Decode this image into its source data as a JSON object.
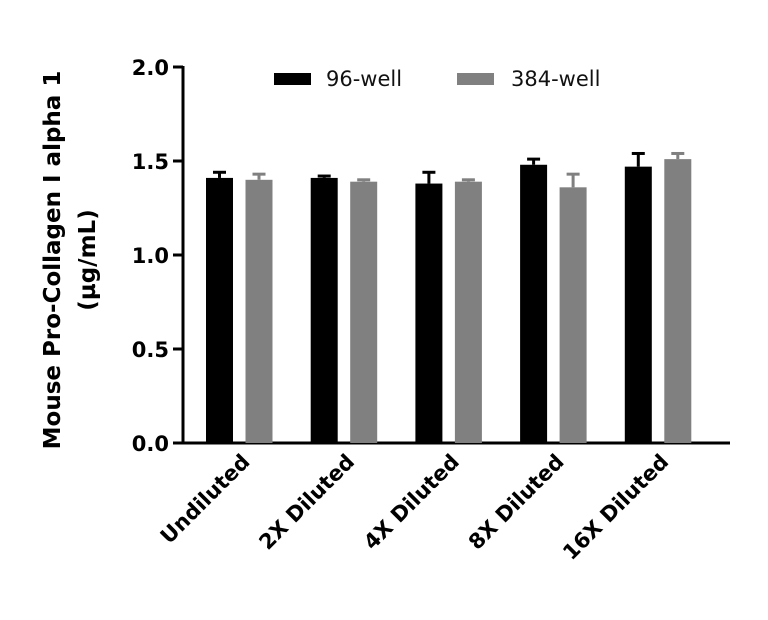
{
  "chart_data": {
    "type": "bar",
    "title": "",
    "xlabel": "",
    "ylabel_line1": "Mouse Pro-Collagen I alpha 1",
    "ylabel_line2": "(µg/mL)",
    "ylim": [
      0,
      2.0
    ],
    "yticks": [
      "0.0",
      "0.5",
      "1.0",
      "1.5",
      "2.0"
    ],
    "grid": false,
    "legend_position": "top",
    "categories": [
      "Undiluted",
      "2X Diluted",
      "4X Diluted",
      "8X Diluted",
      "16X Diluted"
    ],
    "series": [
      {
        "name": "96-well",
        "color": "#000000",
        "values": [
          1.41,
          1.41,
          1.38,
          1.48,
          1.47
        ],
        "error_upper": [
          1.44,
          1.42,
          1.44,
          1.51,
          1.54
        ]
      },
      {
        "name": "384-well",
        "color": "#808080",
        "values": [
          1.4,
          1.39,
          1.39,
          1.36,
          1.51
        ],
        "error_upper": [
          1.43,
          1.4,
          1.4,
          1.43,
          1.54
        ]
      }
    ]
  }
}
